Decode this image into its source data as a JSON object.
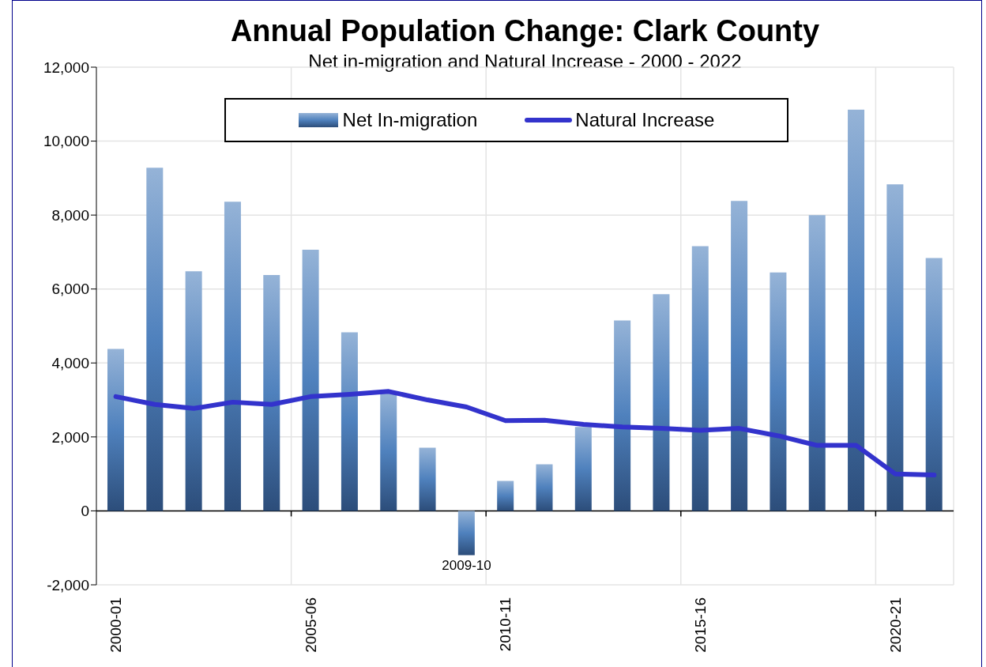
{
  "chart_data": {
    "type": "bar",
    "title": "Annual Population Change: Clark County",
    "subtitle": "Net in-migration and Natural Increase - 2000 - 2022",
    "categories": [
      "2000-01",
      null,
      null,
      null,
      null,
      "2005-06",
      null,
      null,
      null,
      "2009-10",
      "2010-11",
      null,
      null,
      null,
      null,
      "2015-16",
      null,
      null,
      null,
      null,
      "2020-21",
      null
    ],
    "series": [
      {
        "name": "Net In-migration",
        "color": "#4f81bd",
        "values": [
          4380,
          9280,
          6480,
          8360,
          6380,
          7060,
          4830,
          3200,
          1710,
          -1200,
          810,
          1260,
          2270,
          5150,
          5860,
          7160,
          8380,
          6450,
          8000,
          10850,
          8830,
          6840
        ]
      },
      {
        "name": "Natural Increase",
        "type": "line",
        "color": "#3333cc",
        "values": [
          3090,
          2880,
          2770,
          2940,
          2880,
          3090,
          3150,
          3230,
          3000,
          2810,
          2440,
          2450,
          2340,
          2270,
          2230,
          2180,
          2230,
          2030,
          1770,
          1770,
          1000,
          970
        ]
      }
    ],
    "ylim": [
      -2000,
      12000
    ],
    "yticks": [
      {
        "value": -2000,
        "label": "-2,000"
      },
      0,
      {
        "value": 2000,
        "label": "2,000"
      },
      {
        "value": 4000,
        "label": "4,000"
      },
      {
        "value": 6000,
        "label": "6,000"
      },
      {
        "value": 8000,
        "label": "8,000"
      },
      {
        "value": 10000,
        "label": "10,000"
      },
      {
        "value": 12000,
        "label": "12,000"
      }
    ],
    "grid": true,
    "legend": "top",
    "marker": "none",
    "line_style": "solid"
  }
}
